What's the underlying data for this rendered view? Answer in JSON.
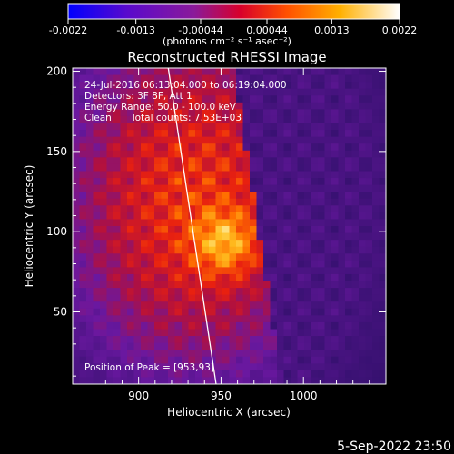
{
  "colorbar": {
    "ticks": [
      "-0.0022",
      "-0.0013",
      "-0.00044",
      "0.00044",
      "0.0013",
      "0.0022"
    ],
    "unit_label": "(photons cm⁻² s⁻¹ asec⁻²)",
    "range": [
      -0.0022,
      0.0022
    ]
  },
  "annotations": {
    "time_range": "24-Jul-2016 06:13:04.000 to 06:19:04.000",
    "detectors": "Detectors: 3F 8F, Att 1",
    "energy": "Energy Range: 50.0 - 100.0 keV",
    "algorithm": "Clean",
    "counts": "Total counts: 7.53E+03",
    "peak": "Position of Peak = [953,93]"
  },
  "footer": {
    "date": "5-Sep-2022 23:50"
  },
  "chart_data": {
    "type": "heatmap",
    "title": "Reconstructed RHESSI Image",
    "xlabel": "Heliocentric X (arcsec)",
    "ylabel": "Heliocentric Y (arcsec)",
    "xlim": [
      860,
      1050
    ],
    "ylim": [
      5,
      202
    ],
    "xticks": [
      900,
      950,
      1000
    ],
    "yticks": [
      50,
      100,
      150,
      200
    ],
    "colormap": "hot (black-blue-purple-red-orange-yellow-white)",
    "features": {
      "peak": [
        953,
        93
      ],
      "bright_region_center": [
        935,
        120
      ],
      "limb_line": [
        [
          918,
          202
        ],
        [
          947,
          5
        ]
      ]
    }
  }
}
